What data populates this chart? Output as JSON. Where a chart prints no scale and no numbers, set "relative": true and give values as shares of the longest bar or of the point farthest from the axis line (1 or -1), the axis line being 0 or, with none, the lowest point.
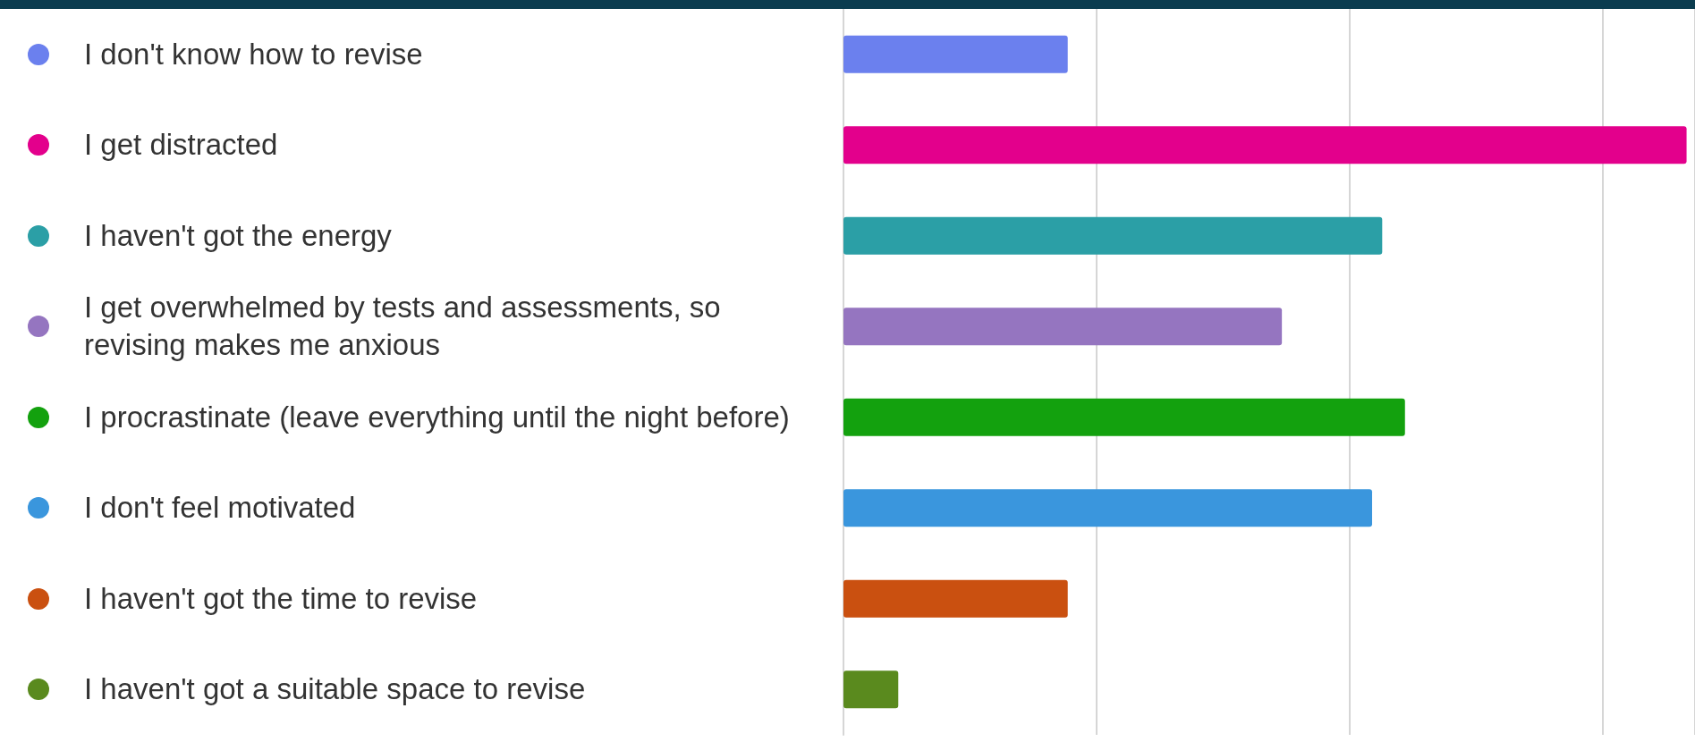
{
  "chart_data": {
    "type": "bar",
    "orientation": "horizontal",
    "relative": true,
    "categories": [
      "I don't know how to revise",
      "I get distracted",
      "I haven't got the energy",
      "I get overwhelmed by tests and assessments, so revising makes me anxious",
      "I procrastinate (leave everything until the night before)",
      "I don't feel motivated",
      "I haven't got the time to revise",
      "I haven't got a suitable space to revise"
    ],
    "values": [
      0.266,
      1,
      0.639,
      0.52,
      0.666,
      0.627,
      0.266,
      0.065
    ],
    "colors": [
      "#6b80ee",
      "#e3008c",
      "#2b9fa6",
      "#9575c0",
      "#13a10e",
      "#3a96dd",
      "#ca5010",
      "#5a8a1e"
    ],
    "grid": "x"
  }
}
